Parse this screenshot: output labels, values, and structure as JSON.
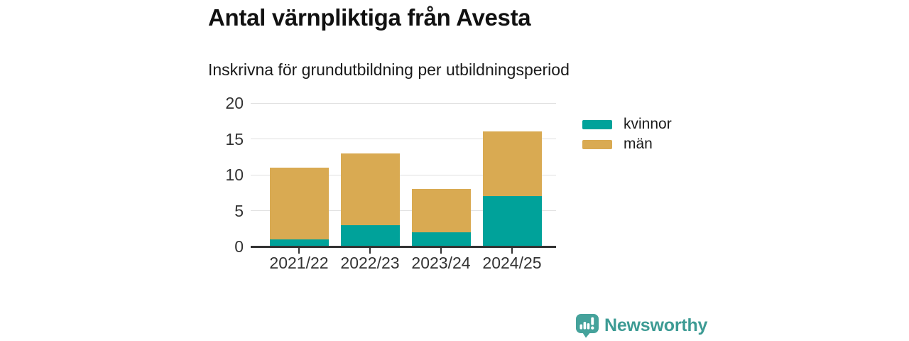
{
  "header": {
    "title": "Antal värnpliktiga från Avesta",
    "subtitle": "Inskrivna för grundutbildning per utbildningsperiod"
  },
  "chart_data": {
    "type": "bar",
    "stacked": true,
    "categories": [
      "2021/22",
      "2022/23",
      "2023/24",
      "2024/25"
    ],
    "series": [
      {
        "name": "kvinnor",
        "color": "#00a29a",
        "values": [
          1,
          3,
          2,
          7
        ]
      },
      {
        "name": "män",
        "color": "#d9aa52",
        "values": [
          10,
          10,
          6,
          9
        ]
      }
    ],
    "totals": [
      11,
      13,
      8,
      16
    ],
    "title": "Antal värnpliktiga från Avesta",
    "subtitle": "Inskrivna för grundutbildning per utbildningsperiod",
    "xlabel": "",
    "ylabel": "",
    "ylim": [
      0,
      20
    ],
    "yticks": [
      0,
      5,
      10,
      15,
      20
    ],
    "grid": true,
    "legend_position": "right"
  },
  "legend": {
    "items": [
      {
        "label": "kvinnor",
        "color": "#00a29a"
      },
      {
        "label": "män",
        "color": "#d9aa52"
      }
    ]
  },
  "footer": {
    "brand": "Newsworthy"
  },
  "colors": {
    "kvinnor": "#00a29a",
    "man": "#d9aa52",
    "axis": "#333333",
    "grid": "#e0e0e0",
    "text": "#1a1a1a",
    "brand": "#3d9b94"
  }
}
